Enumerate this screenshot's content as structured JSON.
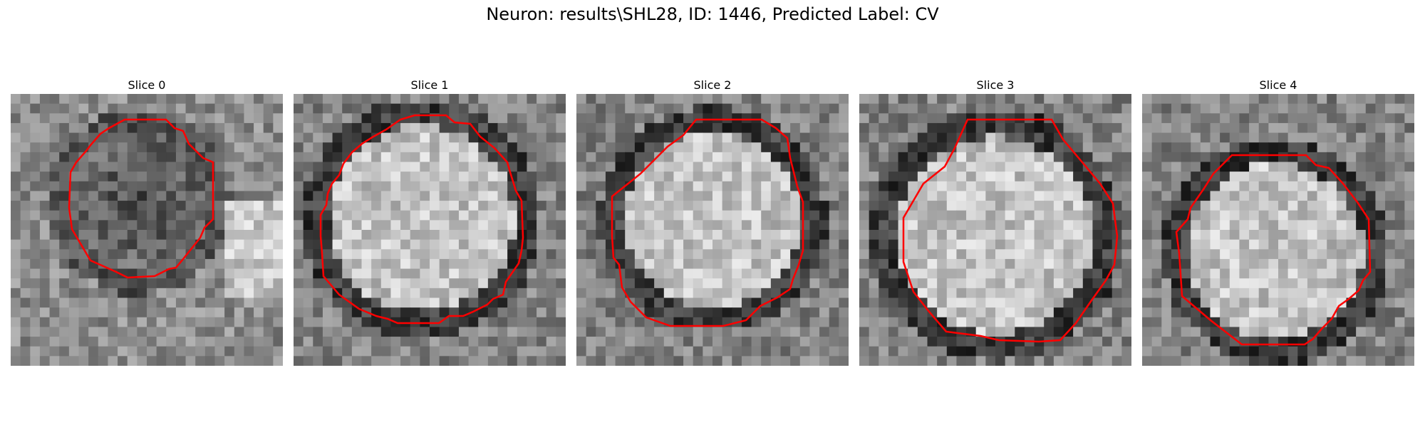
{
  "figure": {
    "title": "Neuron: results\\SHL28, ID: 1446, Predicted Label: CV"
  },
  "colors": {
    "contour": "#ff0000"
  },
  "panels": [
    {
      "title": "Slice 0",
      "blob": "dark"
    },
    {
      "title": "Slice 1",
      "blob": "bright"
    },
    {
      "title": "Slice 2",
      "blob": "bright"
    },
    {
      "title": "Slice 3",
      "blob": "bright"
    },
    {
      "title": "Slice 4",
      "blob": "bright"
    }
  ]
}
